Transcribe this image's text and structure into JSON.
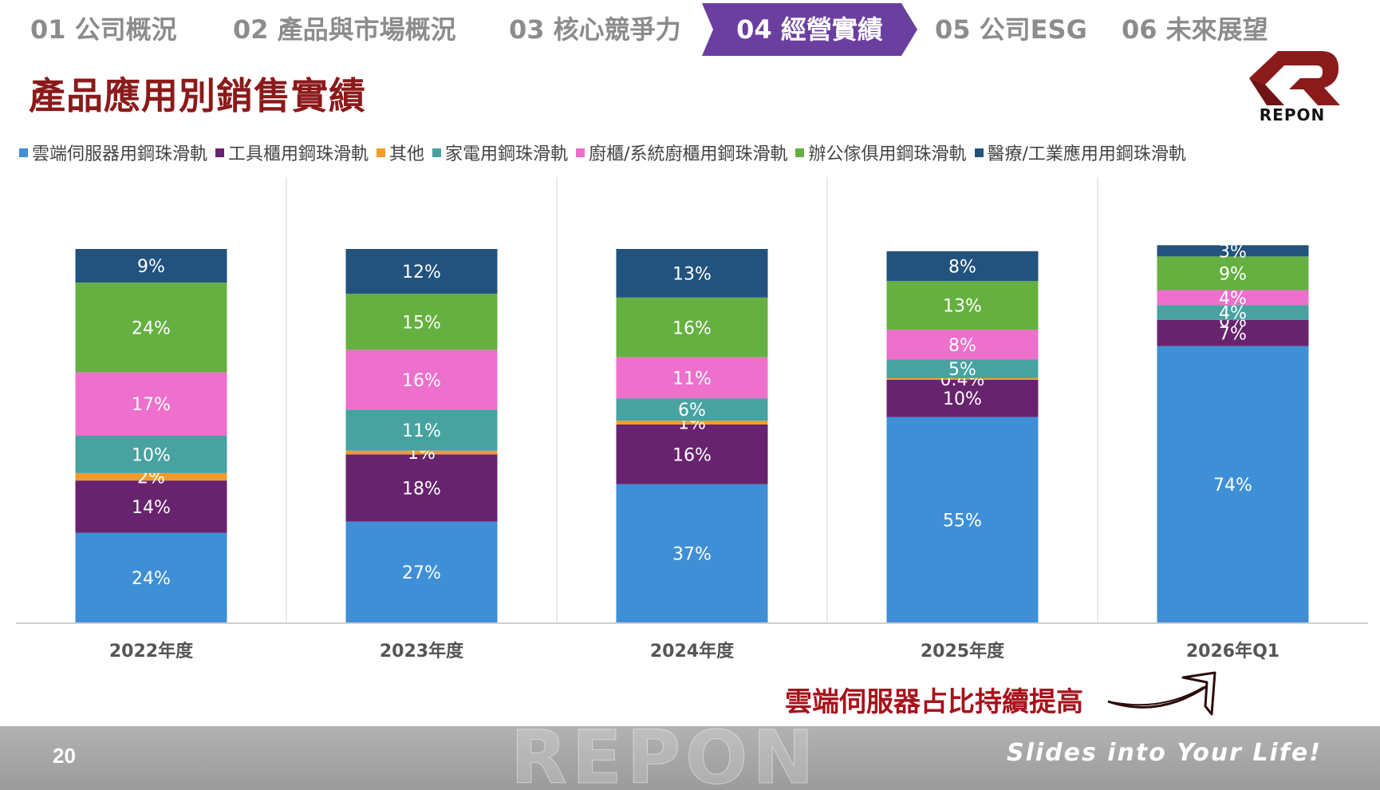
{
  "nav": {
    "items": [
      {
        "label": "01 公司概況"
      },
      {
        "label": "02 產品與市場概況"
      },
      {
        "label": "03 核心競爭力"
      },
      {
        "label": "04 經營實績"
      },
      {
        "label": "05 公司ESG"
      },
      {
        "label": "06 未來展望"
      }
    ],
    "active_color": "#6b3fa0"
  },
  "page_title": "產品應用別銷售實績",
  "logo": {
    "text": "REPON",
    "color": "#8b1a1a"
  },
  "callout": "雲端伺服器占比持續提高",
  "footer": {
    "page_number": "20",
    "slogan": "Slides into Your Life!",
    "watermark": "REPON"
  },
  "chart_data": {
    "type": "bar",
    "stacked": true,
    "legend_position": "top",
    "categories": [
      "2022年度",
      "2023年度",
      "2024年度",
      "2025年度",
      "2026年Q1"
    ],
    "series": [
      {
        "name": "雲端伺服器用鋼珠滑軌",
        "color": "#3f8fd6",
        "values": [
          24,
          27,
          37,
          55,
          74
        ],
        "labels": [
          "24%",
          "27%",
          "37%",
          "55%",
          "74%"
        ]
      },
      {
        "name": "工具櫃用鋼珠滑軌",
        "color": "#68236e",
        "values": [
          14,
          18,
          16,
          10,
          7
        ],
        "labels": [
          "14%",
          "18%",
          "16%",
          "10%",
          "7%"
        ]
      },
      {
        "name": "其他",
        "color": "#f39c2d",
        "values": [
          2,
          1,
          1,
          0.4,
          0
        ],
        "labels": [
          "2%",
          "1%",
          "1%",
          "0.4%",
          "0%"
        ]
      },
      {
        "name": "家電用鋼珠滑軌",
        "color": "#47a2a0",
        "values": [
          10,
          11,
          6,
          5,
          4
        ],
        "labels": [
          "10%",
          "11%",
          "6%",
          "5%",
          "4%"
        ]
      },
      {
        "name": "廚櫃/系統廚櫃用鋼珠滑軌",
        "color": "#ec70cc",
        "values": [
          17,
          16,
          11,
          8,
          4
        ],
        "labels": [
          "17%",
          "16%",
          "11%",
          "8%",
          "4%"
        ]
      },
      {
        "name": "辦公傢俱用鋼珠滑軌",
        "color": "#65b040",
        "values": [
          24,
          15,
          16,
          13,
          9
        ],
        "labels": [
          "24%",
          "15%",
          "16%",
          "13%",
          "9%"
        ]
      },
      {
        "name": "醫療/工業應用用鋼珠滑軌",
        "color": "#22527e",
        "values": [
          9,
          12,
          13,
          8,
          3
        ],
        "labels": [
          "9%",
          "12%",
          "13%",
          "8%",
          "3%"
        ]
      }
    ],
    "ylim": [
      0,
      100
    ],
    "grid": false
  }
}
